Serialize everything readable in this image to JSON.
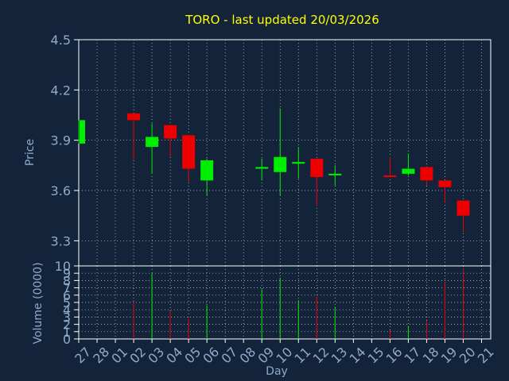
{
  "colors": {
    "background": "#132339",
    "title": "#ffff00",
    "axis_text": "#8faacc",
    "grid": "#ffffff",
    "frame": "#ffffff",
    "up": "#00ee00",
    "down": "#ee0000"
  },
  "chart_data": [
    {
      "type": "candlestick",
      "title": "TORO - last updated 20/03/2026",
      "ylabel": "Price",
      "ylim": [
        3.15,
        4.5
      ],
      "yticks": [
        "4.5",
        "4.2",
        "3.9",
        "3.6",
        "3.3"
      ],
      "grid": true,
      "series": [
        {
          "x": "27",
          "open": 3.88,
          "high": 4.02,
          "low": 3.88,
          "close": 4.02
        },
        {
          "x": "02",
          "open": 4.06,
          "high": 4.06,
          "low": 3.78,
          "close": 4.02
        },
        {
          "x": "03",
          "open": 3.86,
          "high": 4.0,
          "low": 3.7,
          "close": 3.92
        },
        {
          "x": "04",
          "open": 3.99,
          "high": 3.99,
          "low": 3.8,
          "close": 3.91
        },
        {
          "x": "05",
          "open": 3.93,
          "high": 3.93,
          "low": 3.65,
          "close": 3.73
        },
        {
          "x": "06",
          "open": 3.66,
          "high": 3.79,
          "low": 3.57,
          "close": 3.78
        },
        {
          "x": "09",
          "open": 3.73,
          "high": 3.79,
          "low": 3.66,
          "close": 3.74
        },
        {
          "x": "10",
          "open": 3.71,
          "high": 4.09,
          "low": 3.57,
          "close": 3.8
        },
        {
          "x": "11",
          "open": 3.76,
          "high": 3.86,
          "low": 3.67,
          "close": 3.77
        },
        {
          "x": "12",
          "open": 3.79,
          "high": 3.79,
          "low": 3.51,
          "close": 3.68
        },
        {
          "x": "13",
          "open": 3.7,
          "high": 3.75,
          "low": 3.63,
          "close": 3.7
        },
        {
          "x": "16",
          "open": 3.69,
          "high": 3.8,
          "low": 3.68,
          "close": 3.68
        },
        {
          "x": "17",
          "open": 3.7,
          "high": 3.82,
          "low": 3.69,
          "close": 3.73
        },
        {
          "x": "18",
          "open": 3.74,
          "high": 3.74,
          "low": 3.63,
          "close": 3.66
        },
        {
          "x": "19",
          "open": 3.66,
          "high": 3.66,
          "low": 3.53,
          "close": 3.62
        },
        {
          "x": "20",
          "open": 3.54,
          "high": 3.54,
          "low": 3.35,
          "close": 3.45
        }
      ]
    },
    {
      "type": "bar",
      "ylabel": "Volume (0000)",
      "xlabel": "Day",
      "ylim": [
        0,
        10
      ],
      "yticks": [
        "10",
        "9",
        "8",
        "7",
        "6",
        "5",
        "4",
        "3",
        "2",
        "1",
        "0"
      ],
      "grid": true,
      "categories": [
        "27",
        "28",
        "01",
        "02",
        "03",
        "04",
        "05",
        "06",
        "07",
        "08",
        "09",
        "10",
        "11",
        "12",
        "13",
        "14",
        "15",
        "16",
        "17",
        "18",
        "19",
        "20",
        "21"
      ],
      "values": [
        0,
        0,
        0,
        5.0,
        9.0,
        3.8,
        2.8,
        4.6,
        0,
        0,
        6.8,
        8.4,
        5.3,
        5.8,
        4.4,
        0,
        0,
        1.2,
        1.8,
        2.5,
        7.8,
        9.7,
        0
      ],
      "directions": [
        "",
        "",
        "",
        "down",
        "up",
        "down",
        "down",
        "up",
        "",
        "",
        "up",
        "up",
        "up",
        "down",
        "up",
        "",
        "",
        "down",
        "up",
        "down",
        "down",
        "down",
        ""
      ]
    }
  ]
}
